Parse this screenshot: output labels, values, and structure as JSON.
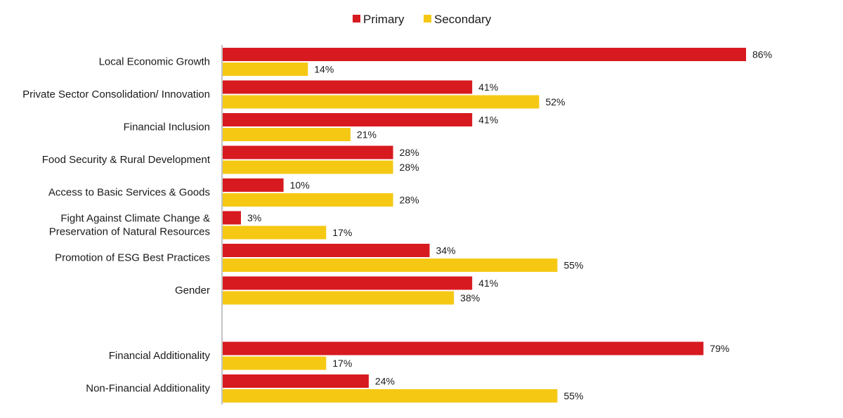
{
  "chart_data": {
    "type": "bar",
    "orientation": "horizontal",
    "legend": {
      "position": "top-center"
    },
    "colors": {
      "primary": "#d71a1f",
      "secondary": "#f5c814",
      "axis": "#b0b0b0"
    },
    "categories": [
      [
        "Local Economic Growth"
      ],
      [
        "Private Sector Consolidation/ Innovation"
      ],
      [
        "Financial Inclusion"
      ],
      [
        "Food Security & Rural Development"
      ],
      [
        "Access to Basic Services & Goods"
      ],
      [
        "Fight Against Climate Change &",
        "Preservation of Natural Resources"
      ],
      [
        "Promotion of ESG Best Practices"
      ],
      [
        "Gender"
      ],
      [
        ""
      ],
      [
        "Financial Additionality"
      ],
      [
        "Non-Financial Additionality"
      ]
    ],
    "series": [
      {
        "name": "Primary",
        "values": [
          86,
          41,
          41,
          28,
          10,
          3,
          34,
          41,
          null,
          79,
          24
        ]
      },
      {
        "name": "Secondary",
        "values": [
          14,
          52,
          21,
          28,
          28,
          17,
          55,
          38,
          null,
          17,
          55
        ]
      }
    ],
    "value_suffix": "%",
    "xlim": [
      0,
      100
    ]
  }
}
